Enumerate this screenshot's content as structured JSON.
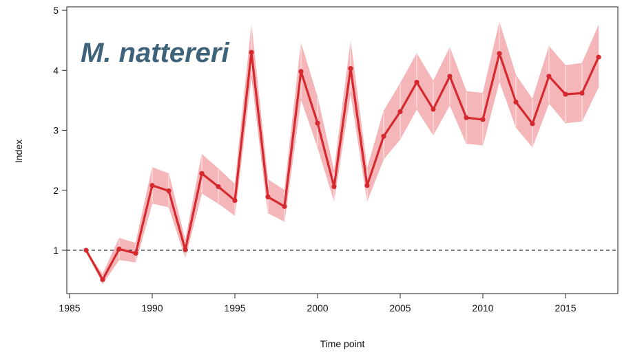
{
  "chart_data": {
    "type": "line",
    "title": "M. nattereri",
    "xlabel": "Time point",
    "ylabel": "Index",
    "xlim": [
      1985,
      2018
    ],
    "ylim": [
      0.5,
      5
    ],
    "xticks": [
      1985,
      1990,
      1995,
      2000,
      2005,
      2010,
      2015
    ],
    "yticks": [
      1,
      2,
      3,
      4,
      5
    ],
    "grid": false,
    "reference_line": 1,
    "colors": {
      "line": "#d42a2f",
      "band": "#f4b6b8",
      "reference": "#333333",
      "title": "#3d6279"
    },
    "series": [
      {
        "x": [
          1986,
          1987,
          1988,
          1989,
          1990,
          1991,
          1992,
          1993,
          1994,
          1995,
          1996,
          1997,
          1998,
          1999,
          2000,
          2001,
          2002,
          2003,
          2004,
          2005,
          2006,
          2007,
          2008,
          2009,
          2010,
          2011,
          2012,
          2013,
          2014,
          2015,
          2016,
          2017
        ],
        "y": [
          1.0,
          0.51,
          1.02,
          0.95,
          2.08,
          1.99,
          1.01,
          2.28,
          2.06,
          1.83,
          4.3,
          1.89,
          1.73,
          3.98,
          3.12,
          2.06,
          4.03,
          2.08,
          2.9,
          3.31,
          3.8,
          3.35,
          3.9,
          3.21,
          3.18,
          4.28,
          3.47,
          3.11,
          3.9,
          3.6,
          3.62,
          4.22
        ],
        "lower": [
          1.0,
          0.44,
          0.84,
          0.8,
          1.78,
          1.72,
          0.88,
          1.95,
          1.78,
          1.58,
          3.9,
          1.62,
          1.48,
          3.52,
          2.72,
          1.82,
          3.62,
          1.82,
          2.52,
          2.85,
          3.35,
          2.92,
          3.42,
          2.78,
          2.75,
          3.82,
          3.05,
          2.72,
          3.45,
          3.12,
          3.15,
          3.72
        ],
        "upper": [
          1.0,
          0.6,
          1.2,
          1.12,
          2.38,
          2.28,
          1.16,
          2.6,
          2.36,
          2.1,
          4.75,
          2.18,
          2.0,
          4.45,
          3.55,
          2.32,
          4.48,
          2.36,
          3.32,
          3.78,
          4.28,
          3.82,
          4.38,
          3.65,
          3.62,
          4.8,
          3.92,
          3.52,
          4.4,
          4.08,
          4.12,
          4.75
        ]
      }
    ]
  }
}
